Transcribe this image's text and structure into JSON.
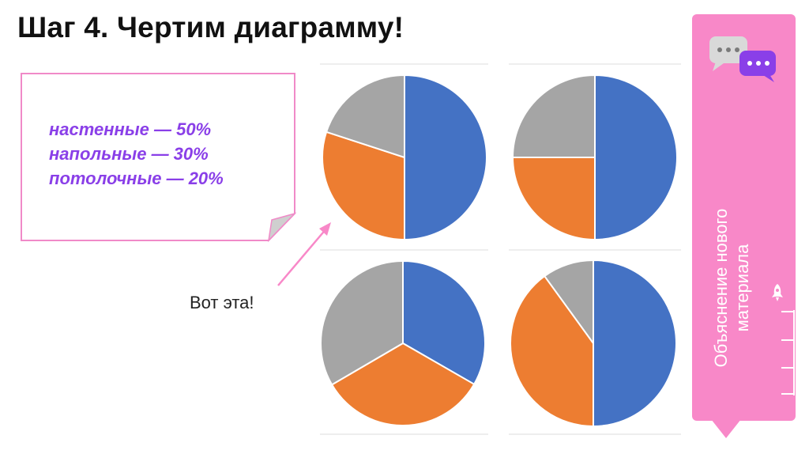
{
  "header": {
    "title": "Шаг 4. Чертим диаграмму!"
  },
  "note": {
    "lines": [
      "настенные — 50%",
      "напольные — 30%",
      "потолочные — 20%"
    ],
    "text_color": "#8a3fe8",
    "border_color": "#f08ac8"
  },
  "caption": {
    "text": "Вот эта!"
  },
  "sidebar": {
    "label_line1": "Объяснение нового",
    "label_line2": "материала",
    "color": "#f888c8"
  },
  "palette": {
    "blue": "#4472c4",
    "orange": "#ed7d31",
    "gray": "#a5a5a5"
  },
  "chart_data": [
    {
      "type": "pie",
      "position": "top-left",
      "values": [
        50,
        30,
        20
      ],
      "colors": [
        "#4472c4",
        "#ed7d31",
        "#a5a5a5"
      ]
    },
    {
      "type": "pie",
      "position": "top-right",
      "values": [
        50,
        25,
        25
      ],
      "colors": [
        "#4472c4",
        "#ed7d31",
        "#a5a5a5"
      ]
    },
    {
      "type": "pie",
      "position": "bottom-left",
      "values": [
        33.3,
        33.3,
        33.4
      ],
      "colors": [
        "#4472c4",
        "#ed7d31",
        "#a5a5a5"
      ]
    },
    {
      "type": "pie",
      "position": "bottom-right",
      "values": [
        50,
        40,
        10
      ],
      "colors": [
        "#4472c4",
        "#ed7d31",
        "#a5a5a5"
      ]
    }
  ]
}
